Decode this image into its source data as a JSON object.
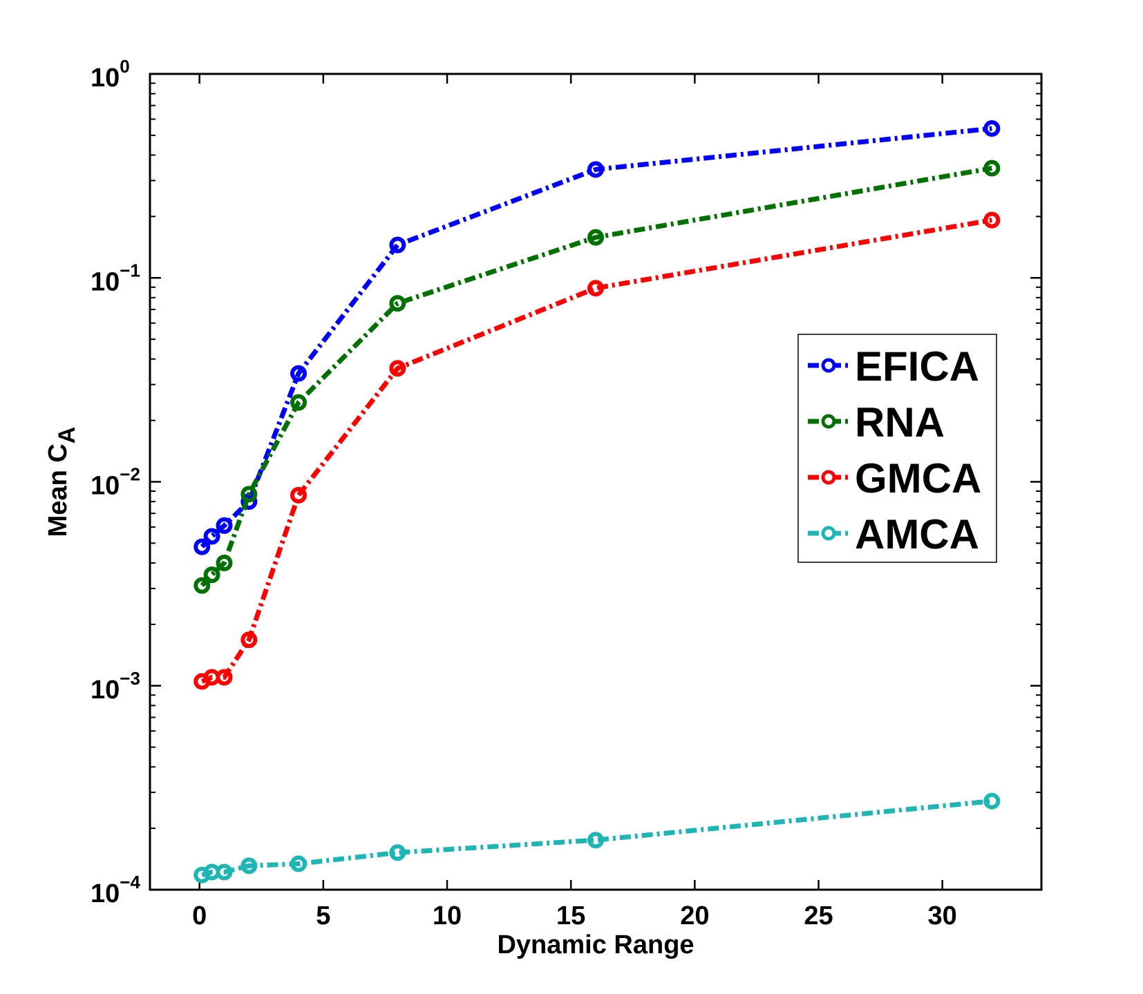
{
  "chart_data": {
    "type": "line",
    "title": "",
    "xlabel": "Dynamic Range",
    "ylabel": "Mean C",
    "ylabel_subscript": "A",
    "yscale": "log",
    "xlim": [
      -2,
      34
    ],
    "ylim": [
      0.0001,
      1
    ],
    "xticks": [
      0,
      5,
      10,
      15,
      20,
      25,
      30
    ],
    "xtick_labels": [
      "0",
      "5",
      "10",
      "15",
      "20",
      "25",
      "30"
    ],
    "yticks": [
      {
        "value": 1,
        "base": "10",
        "exp": "0"
      },
      {
        "value": 0.1,
        "base": "10",
        "exp": "−1"
      },
      {
        "value": 0.01,
        "base": "10",
        "exp": "−2"
      },
      {
        "value": 0.001,
        "base": "10",
        "exp": "−3"
      },
      {
        "value": 0.0001,
        "base": "10",
        "exp": "−4"
      }
    ],
    "grid": false,
    "legend_position": "center-right",
    "x": [
      0.1,
      0.5,
      1,
      2,
      4,
      8,
      16,
      32
    ],
    "series": [
      {
        "name": "EFICA",
        "color": "#0000ff",
        "values": [
          0.0048,
          0.0054,
          0.0061,
          0.008,
          0.034,
          0.145,
          0.34,
          0.54
        ]
      },
      {
        "name": "RNA",
        "color": "#007000",
        "values": [
          0.0031,
          0.0035,
          0.004,
          0.0087,
          0.0245,
          0.075,
          0.158,
          0.345
        ]
      },
      {
        "name": "GMCA",
        "color": "#ff0000",
        "values": [
          0.00105,
          0.0011,
          0.0011,
          0.00168,
          0.0086,
          0.036,
          0.089,
          0.192
        ]
      },
      {
        "name": "AMCA",
        "color": "#1fb5b5",
        "values": [
          0.000118,
          0.000122,
          0.000122,
          0.000131,
          0.000134,
          0.000152,
          0.000175,
          0.000272
        ]
      }
    ]
  }
}
